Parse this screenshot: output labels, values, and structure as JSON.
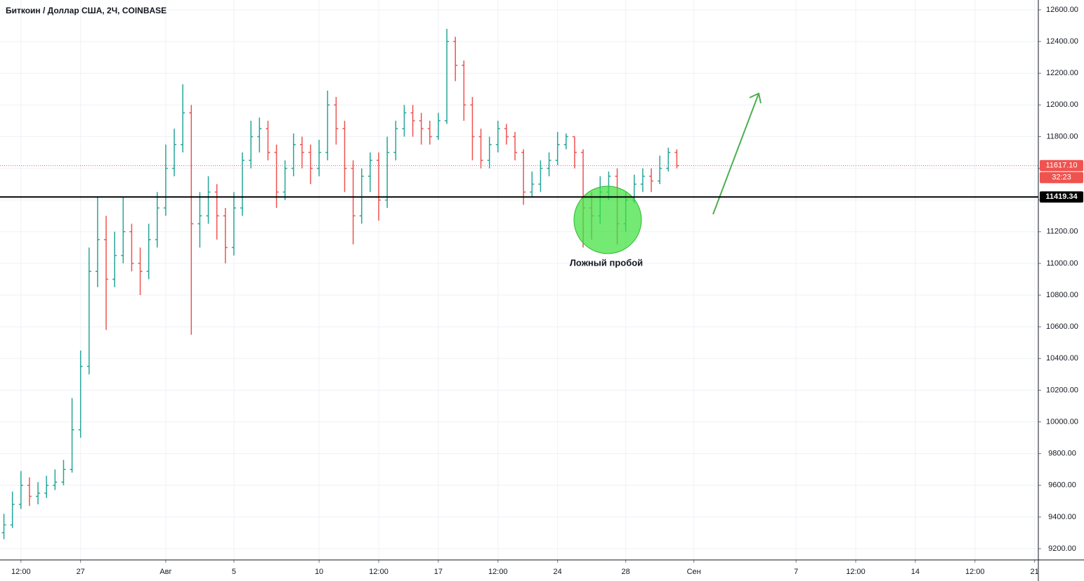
{
  "chart_data": {
    "type": "ohlc",
    "title": "Биткоин / Доллар США, 2Ч, COINBASE",
    "annotation": "Ложный пробой",
    "up_color": "#26a69a",
    "down_color": "#ef5350",
    "grid": true,
    "xlim": [
      -9.73,
      51.22
    ],
    "ylim": [
      9129,
      12662
    ],
    "xticks": [
      {
        "value": -8.5,
        "label": "12:00"
      },
      {
        "value": -5,
        "label": "27"
      },
      {
        "value": 0,
        "label": "Авг"
      },
      {
        "value": 4,
        "label": "5"
      },
      {
        "value": 9,
        "label": "10"
      },
      {
        "value": 12.5,
        "label": "12:00"
      },
      {
        "value": 16,
        "label": "17"
      },
      {
        "value": 19.5,
        "label": "12:00"
      },
      {
        "value": 23,
        "label": "24"
      },
      {
        "value": 27,
        "label": "28"
      },
      {
        "value": 31,
        "label": "Сен"
      },
      {
        "value": 37,
        "label": "7"
      },
      {
        "value": 40.5,
        "label": "12:00"
      },
      {
        "value": 44,
        "label": "14"
      },
      {
        "value": 47.5,
        "label": "12:00"
      },
      {
        "value": 51,
        "label": "21"
      }
    ],
    "yticks": [
      {
        "value": 9200,
        "label": "9200.00"
      },
      {
        "value": 9400,
        "label": "9400.00"
      },
      {
        "value": 9600,
        "label": "9600.00"
      },
      {
        "value": 9800,
        "label": "9800.00"
      },
      {
        "value": 10000,
        "label": "10000.00"
      },
      {
        "value": 10200,
        "label": "10200.00"
      },
      {
        "value": 10400,
        "label": "10400.00"
      },
      {
        "value": 10600,
        "label": "10600.00"
      },
      {
        "value": 10800,
        "label": "10800.00"
      },
      {
        "value": 11000,
        "label": "11000.00"
      },
      {
        "value": 11200,
        "label": "11200.00"
      },
      {
        "value": 11400,
        "label": "11400.00"
      },
      {
        "value": 11600,
        "label": "11600.00"
      },
      {
        "value": 11800,
        "label": "11800.00"
      },
      {
        "value": 12000,
        "label": "12000.00"
      },
      {
        "value": 12200,
        "label": "12200.00"
      },
      {
        "value": 12400,
        "label": "12400.00"
      },
      {
        "value": 12600,
        "label": "12600.00"
      }
    ],
    "level": {
      "value": 11419.34,
      "label": "11419.34"
    },
    "last_price": {
      "value": 11617.1,
      "label": "11617.10",
      "countdown": "32:23"
    },
    "x": [
      -9.5,
      -9,
      -8.5,
      -8,
      -7.5,
      -7,
      -6.5,
      -6,
      -5.5,
      -5,
      -4.5,
      -4,
      -3.5,
      -3,
      -2.5,
      -2,
      -1.5,
      -1,
      -0.5,
      0,
      0.5,
      1,
      1.5,
      2,
      2.5,
      3,
      3.5,
      4,
      4.5,
      5,
      5.5,
      6,
      6.5,
      7,
      7.5,
      8,
      8.5,
      9,
      9.5,
      10,
      10.5,
      11,
      11.5,
      12,
      12.5,
      13,
      13.5,
      14,
      14.5,
      15,
      15.5,
      16,
      16.5,
      17,
      17.5,
      18,
      18.5,
      19,
      19.5,
      20,
      20.5,
      21,
      21.5,
      22,
      22.5,
      23,
      23.5,
      24,
      24.5,
      25,
      25.5,
      26,
      26.5,
      27,
      27.5,
      28,
      28.5,
      29,
      29.5,
      30
    ],
    "open": [
      9300,
      9350,
      9480,
      9600,
      9530,
      9550,
      9600,
      9620,
      9700,
      9950,
      10350,
      10950,
      11150,
      10900,
      11050,
      11200,
      11000,
      10950,
      11150,
      11350,
      11600,
      11750,
      11950,
      11250,
      11300,
      11450,
      11300,
      11100,
      11350,
      11650,
      11800,
      11850,
      11700,
      11450,
      11600,
      11750,
      11700,
      11600,
      11700,
      12000,
      11850,
      11600,
      11300,
      11550,
      11650,
      11400,
      11700,
      11850,
      11950,
      11900,
      11850,
      11800,
      11900,
      12400,
      12250,
      12000,
      11800,
      11650,
      11750,
      11850,
      11800,
      11700,
      11450,
      11500,
      11600,
      11650,
      11750,
      11800,
      11700,
      11350,
      11300,
      11450,
      11550,
      11250,
      11400,
      11500,
      11550,
      11520,
      11600,
      11700
    ],
    "high": [
      9420,
      9560,
      9690,
      9650,
      9620,
      9660,
      9700,
      9760,
      10150,
      10450,
      11100,
      11420,
      11300,
      11200,
      11420,
      11250,
      11100,
      11250,
      11450,
      11750,
      11850,
      12130,
      12000,
      11450,
      11550,
      11500,
      11350,
      11450,
      11700,
      11900,
      11920,
      11900,
      11750,
      11650,
      11820,
      11800,
      11750,
      11780,
      12090,
      12050,
      11900,
      11650,
      11600,
      11700,
      11700,
      11800,
      11900,
      12000,
      12000,
      11950,
      11900,
      11950,
      12480,
      12430,
      12280,
      12050,
      11850,
      11800,
      11900,
      11880,
      11830,
      11720,
      11580,
      11650,
      11700,
      11830,
      11820,
      11800,
      11720,
      11450,
      11550,
      11580,
      11600,
      11450,
      11560,
      11600,
      11600,
      11680,
      11730,
      11720
    ],
    "low": [
      9260,
      9330,
      9450,
      9470,
      9480,
      9520,
      9570,
      9600,
      9680,
      9900,
      10300,
      10850,
      10580,
      10850,
      11000,
      10950,
      10800,
      10900,
      11100,
      11300,
      11550,
      11700,
      10550,
      11100,
      11250,
      11150,
      11000,
      11050,
      11300,
      11600,
      11700,
      11650,
      11350,
      11400,
      11550,
      11600,
      11500,
      11550,
      11650,
      11750,
      11450,
      11120,
      11250,
      11450,
      11270,
      11350,
      11650,
      11800,
      11800,
      11750,
      11750,
      11780,
      11880,
      12150,
      11900,
      11650,
      11600,
      11600,
      11700,
      11750,
      11650,
      11370,
      11420,
      11450,
      11550,
      11620,
      11720,
      11600,
      11100,
      11150,
      11250,
      11400,
      11120,
      11200,
      11380,
      11450,
      11450,
      11500,
      11580,
      11600
    ],
    "close": [
      9350,
      9480,
      9600,
      9530,
      9550,
      9600,
      9620,
      9700,
      9950,
      10350,
      10950,
      11150,
      10900,
      11050,
      11200,
      11000,
      10950,
      11150,
      11350,
      11600,
      11750,
      11950,
      11250,
      11300,
      11450,
      11300,
      11100,
      11350,
      11650,
      11800,
      11850,
      11700,
      11450,
      11600,
      11750,
      11700,
      11600,
      11700,
      12000,
      11850,
      11600,
      11300,
      11550,
      11650,
      11400,
      11700,
      11850,
      11950,
      11900,
      11850,
      11800,
      11900,
      12400,
      12250,
      12000,
      11800,
      11650,
      11750,
      11850,
      11800,
      11700,
      11450,
      11500,
      11600,
      11650,
      11750,
      11800,
      11700,
      11350,
      11300,
      11450,
      11550,
      11250,
      11400,
      11500,
      11550,
      11520,
      11600,
      11700,
      11617.1
    ]
  }
}
